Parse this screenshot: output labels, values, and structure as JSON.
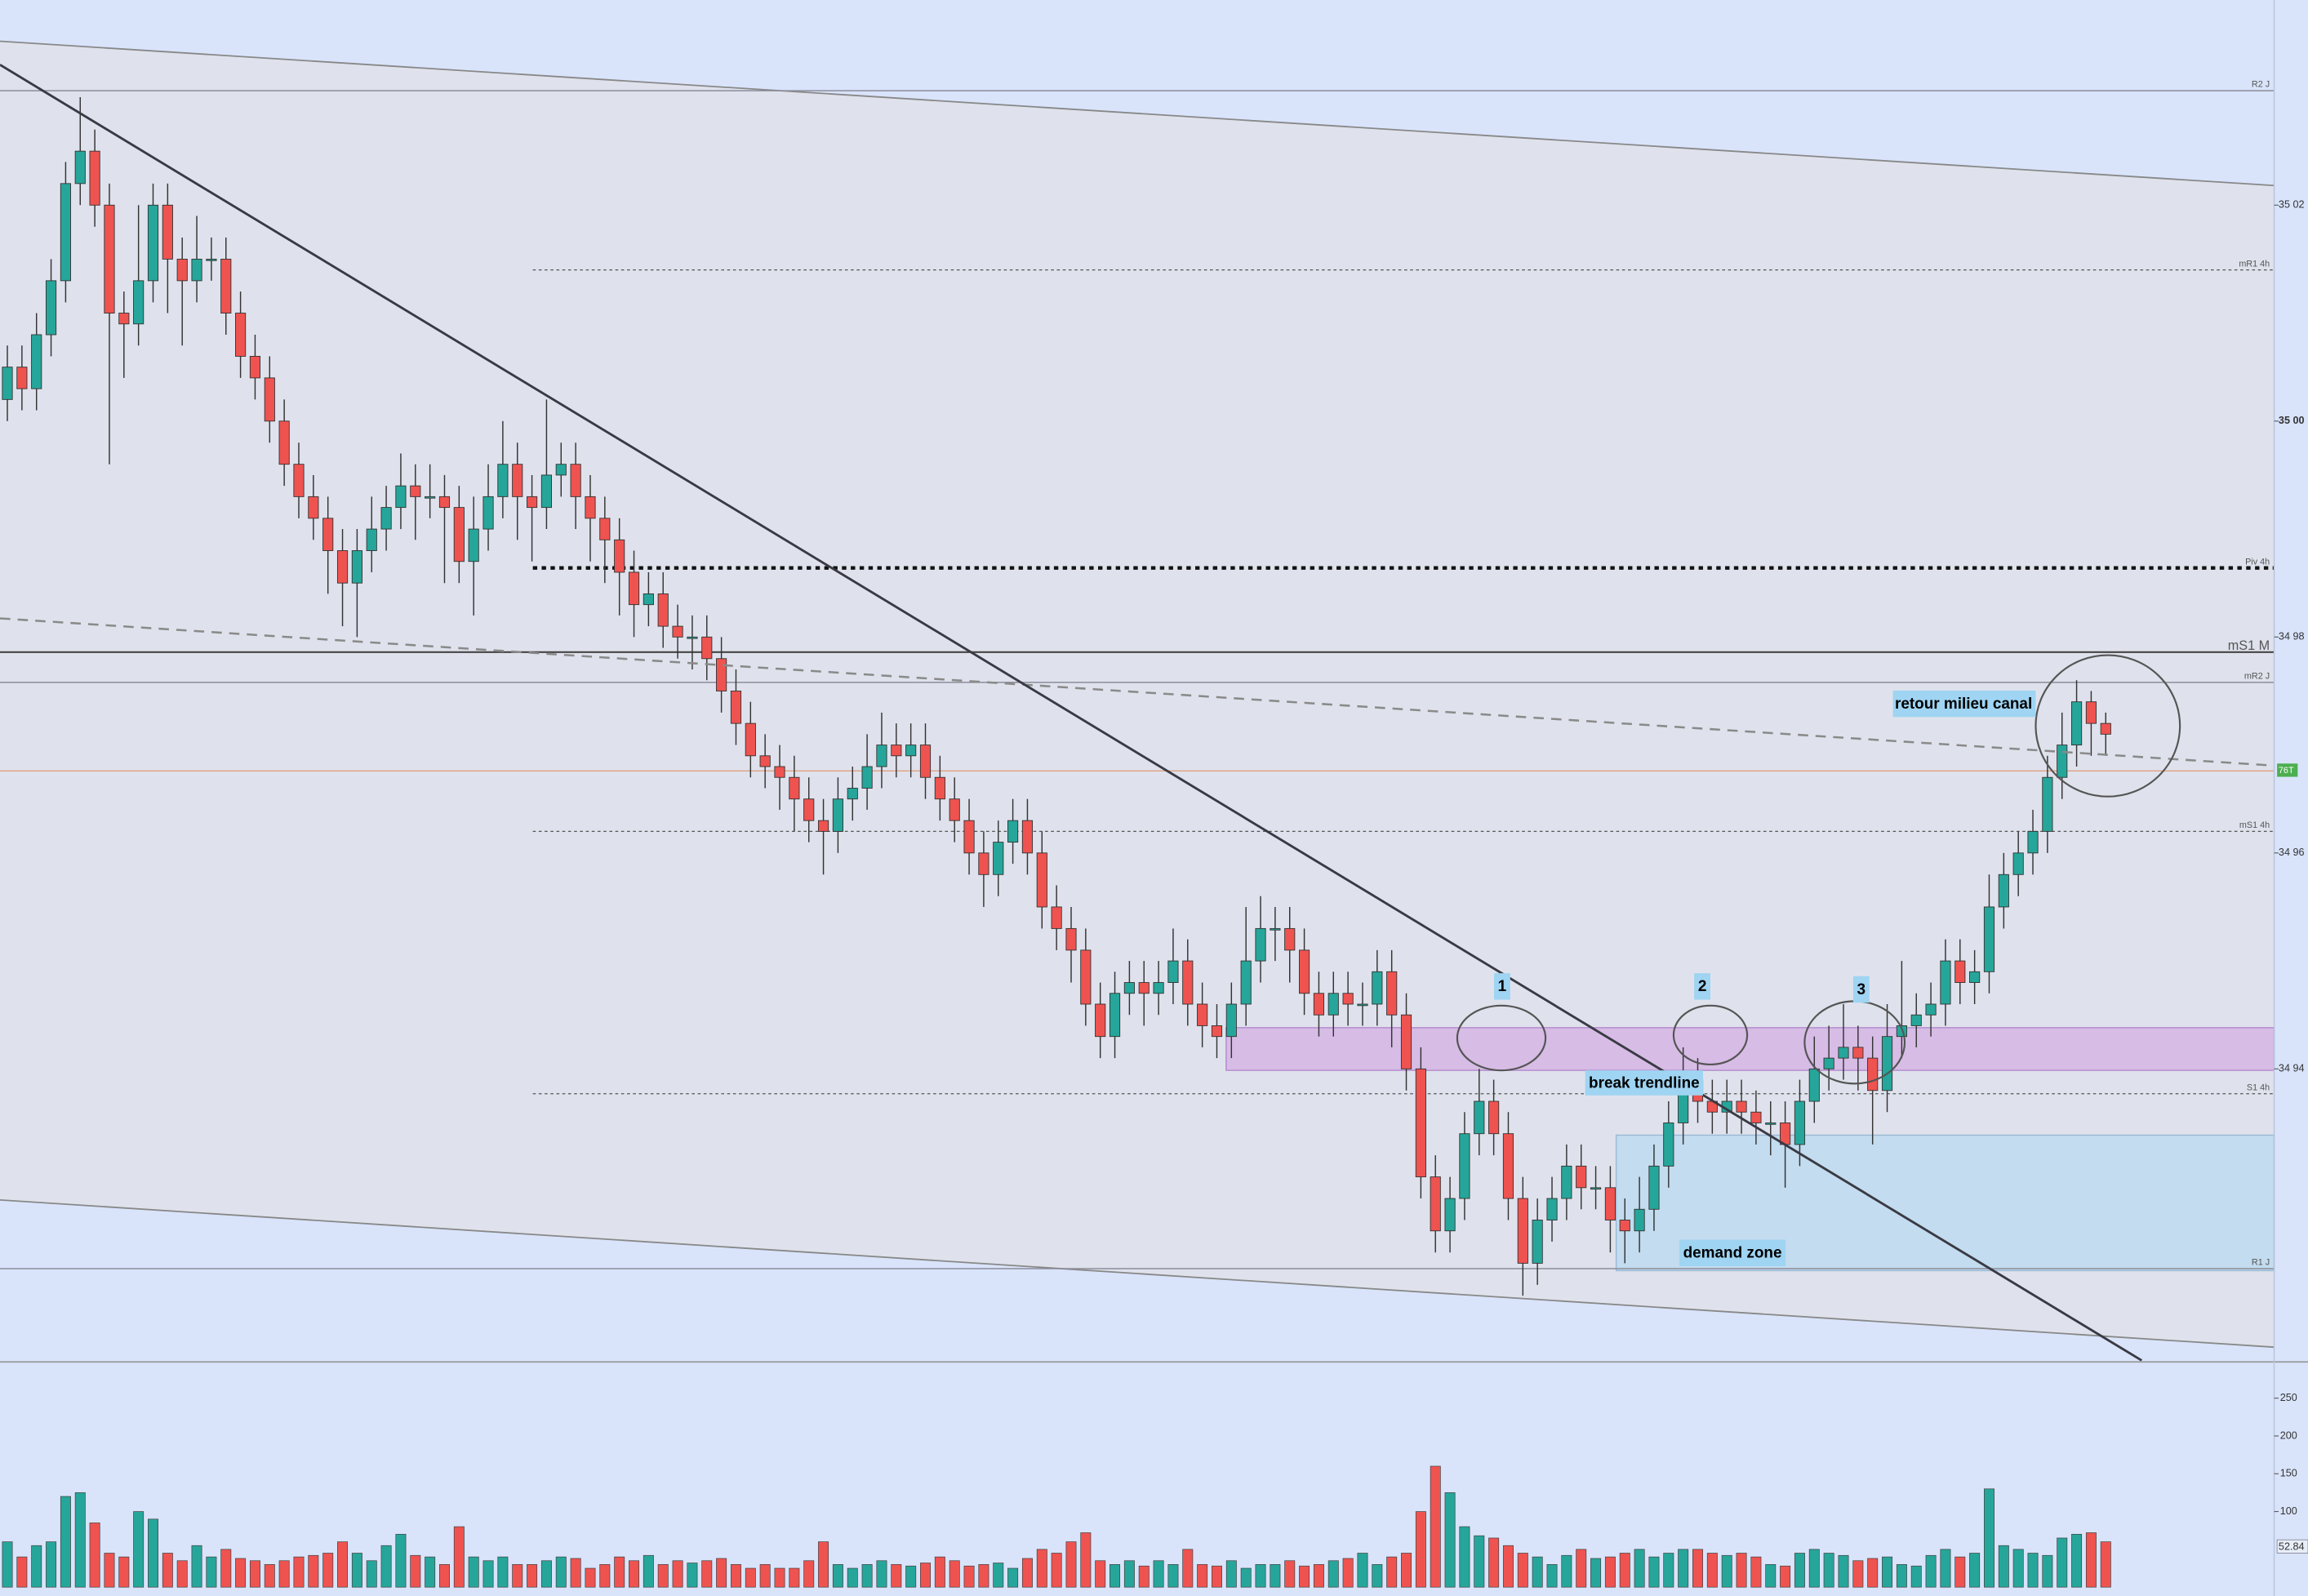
{
  "chart_data": {
    "type": "candlestick",
    "ylim": [
      34913,
      35039
    ],
    "yticks": [
      {
        "value": 35020,
        "label": "35 02"
      },
      {
        "value": 35000,
        "label": "35 00"
      },
      {
        "value": 34980,
        "label": "34 98"
      },
      {
        "value": 34960,
        "label": "34 96"
      },
      {
        "value": 34940,
        "label": "34 94"
      }
    ],
    "up_color": "#26a69a",
    "down_color": "#ef5350",
    "open": [
      35002,
      35005,
      35003,
      35008,
      35013,
      35022,
      35025,
      35020,
      35010,
      35009,
      35013,
      35020,
      35015,
      35013,
      35015,
      35015,
      35010,
      35006,
      35004,
      35000,
      34996,
      34993,
      34991,
      34988,
      34985,
      34988,
      34990,
      34992,
      34994,
      34993,
      34993,
      34992,
      34987,
      34990,
      34993,
      34996,
      34993,
      34992,
      34995,
      34996,
      34993,
      34991,
      34989,
      34986,
      34983,
      34984,
      34981,
      34980,
      34980,
      34978,
      34975,
      34972,
      34969,
      34968,
      34967,
      34965,
      34963,
      34962,
      34965,
      34966,
      34968,
      34970,
      34969,
      34970,
      34967,
      34965,
      34963,
      34960,
      34958,
      34961,
      34963,
      34960,
      34955,
      34953,
      34951,
      34946,
      34943,
      34947,
      34948,
      34947,
      34948,
      34950,
      34946,
      34944,
      34943,
      34946,
      34950,
      34953,
      34953,
      34951,
      34947,
      34945,
      34947,
      34946,
      34946,
      34949,
      34945,
      34940,
      34930,
      34925,
      34928,
      34934,
      34937,
      34934,
      34928,
      34922,
      34926,
      34928,
      34931,
      34929,
      34929,
      34926,
      34925,
      34927,
      34931,
      34935,
      34939,
      34937,
      34936,
      34937,
      34936,
      34935,
      34935,
      34933,
      34937,
      34940,
      34941,
      34942,
      34941,
      34938,
      34943,
      34944,
      34945,
      34946,
      34950,
      34948,
      34949,
      34955,
      34958,
      34960,
      34962,
      34967,
      34970,
      34974,
      34972
    ],
    "high": [
      35007,
      35007,
      35010,
      35015,
      35024,
      35030,
      35027,
      35022,
      35012,
      35020,
      35022,
      35022,
      35017,
      35019,
      35017,
      35017,
      35012,
      35008,
      35006,
      35002,
      34998,
      34995,
      34993,
      34990,
      34990,
      34993,
      34994,
      34997,
      34996,
      34996,
      34995,
      34994,
      34993,
      34996,
      35000,
      34998,
      34995,
      35002,
      34998,
      34998,
      34995,
      34993,
      34991,
      34988,
      34986,
      34986,
      34983,
      34982,
      34982,
      34980,
      34977,
      34974,
      34971,
      34970,
      34969,
      34967,
      34965,
      34967,
      34968,
      34971,
      34973,
      34972,
      34972,
      34972,
      34969,
      34967,
      34965,
      34962,
      34963,
      34965,
      34965,
      34962,
      34957,
      34955,
      34953,
      34948,
      34949,
      34950,
      34950,
      34950,
      34953,
      34952,
      34948,
      34946,
      34948,
      34955,
      34956,
      34955,
      34955,
      34953,
      34949,
      34949,
      34949,
      34948,
      34951,
      34951,
      34947,
      34942,
      34932,
      34930,
      34936,
      34940,
      34939,
      34936,
      34930,
      34928,
      34930,
      34933,
      34933,
      34931,
      34931,
      34928,
      34930,
      34933,
      34937,
      34942,
      34941,
      34939,
      34939,
      34939,
      34938,
      34937,
      34937,
      34939,
      34943,
      34944,
      34946,
      34944,
      34943,
      34946,
      34950,
      34947,
      34948,
      34952,
      34952,
      34951,
      34958,
      34960,
      34962,
      34964,
      34969,
      34973,
      34976,
      34975,
      34973
    ],
    "low": [
      35000,
      35001,
      35001,
      35006,
      35011,
      35020,
      35018,
      34996,
      35004,
      35007,
      35011,
      35010,
      35007,
      35011,
      35013,
      35008,
      35004,
      35002,
      34998,
      34994,
      34991,
      34989,
      34984,
      34981,
      34980,
      34986,
      34988,
      34990,
      34989,
      34991,
      34985,
      34985,
      34982,
      34988,
      34991,
      34989,
      34987,
      34990,
      34993,
      34990,
      34987,
      34985,
      34982,
      34980,
      34981,
      34979,
      34978,
      34977,
      34976,
      34973,
      34970,
      34967,
      34966,
      34964,
      34962,
      34961,
      34958,
      34960,
      34963,
      34964,
      34966,
      34967,
      34967,
      34965,
      34963,
      34961,
      34958,
      34955,
      34956,
      34959,
      34958,
      34953,
      34951,
      34948,
      34944,
      34941,
      34941,
      34945,
      34944,
      34945,
      34946,
      34944,
      34942,
      34941,
      34941,
      34944,
      34948,
      34950,
      34948,
      34945,
      34943,
      34943,
      34944,
      34944,
      34944,
      34942,
      34938,
      34928,
      34923,
      34923,
      34926,
      34932,
      34932,
      34926,
      34919,
      34920,
      34924,
      34926,
      34927,
      34927,
      34923,
      34922,
      34923,
      34925,
      34929,
      34933,
      34935,
      34934,
      34934,
      34934,
      34933,
      34932,
      34929,
      34931,
      34935,
      34938,
      34939,
      34938,
      34933,
      34936,
      34941,
      34942,
      34943,
      34944,
      34946,
      34946,
      34947,
      34953,
      34956,
      34958,
      34960,
      34965,
      34968,
      34969,
      34969
    ],
    "close": [
      35005,
      35003,
      35008,
      35013,
      35022,
      35025,
      35020,
      35010,
      35009,
      35013,
      35020,
      35015,
      35013,
      35015,
      35015,
      35010,
      35006,
      35004,
      35000,
      34996,
      34993,
      34991,
      34988,
      34985,
      34988,
      34990,
      34992,
      34994,
      34993,
      34993,
      34992,
      34987,
      34990,
      34993,
      34996,
      34993,
      34992,
      34995,
      34996,
      34993,
      34991,
      34989,
      34986,
      34983,
      34984,
      34981,
      34980,
      34980,
      34978,
      34975,
      34972,
      34969,
      34968,
      34967,
      34965,
      34963,
      34962,
      34965,
      34966,
      34968,
      34970,
      34969,
      34970,
      34967,
      34965,
      34963,
      34960,
      34958,
      34961,
      34963,
      34960,
      34955,
      34953,
      34951,
      34946,
      34943,
      34947,
      34948,
      34947,
      34948,
      34950,
      34946,
      34944,
      34943,
      34946,
      34950,
      34953,
      34953,
      34951,
      34947,
      34945,
      34947,
      34946,
      34946,
      34949,
      34945,
      34940,
      34930,
      34925,
      34928,
      34934,
      34937,
      34934,
      34928,
      34922,
      34926,
      34928,
      34931,
      34929,
      34929,
      34926,
      34925,
      34927,
      34931,
      34935,
      34939,
      34937,
      34936,
      34937,
      34936,
      34935,
      34935,
      34933,
      34937,
      34940,
      34941,
      34942,
      34941,
      34938,
      34943,
      34944,
      34945,
      34946,
      34950,
      34948,
      34949,
      34955,
      34958,
      34960,
      34962,
      34967,
      34970,
      34974,
      34972,
      34971
    ],
    "volume": [
      60,
      40,
      55,
      60,
      120,
      125,
      85,
      45,
      40,
      100,
      90,
      45,
      35,
      55,
      40,
      50,
      38,
      35,
      30,
      35,
      40,
      42,
      45,
      60,
      45,
      35,
      55,
      70,
      42,
      40,
      30,
      80,
      40,
      35,
      40,
      30,
      30,
      35,
      40,
      38,
      25,
      30,
      40,
      35,
      42,
      30,
      35,
      32,
      35,
      38,
      30,
      25,
      30,
      25,
      25,
      35,
      60,
      30,
      25,
      30,
      35,
      30,
      28,
      32,
      40,
      35,
      28,
      30,
      32,
      25,
      38,
      50,
      45,
      60,
      72,
      35,
      30,
      35,
      28,
      35,
      30,
      50,
      30,
      28,
      35,
      25,
      30,
      30,
      35,
      28,
      30,
      35,
      38,
      45,
      30,
      40,
      45,
      100,
      160,
      125,
      80,
      68,
      65,
      55,
      45,
      40,
      30,
      42,
      50,
      38,
      40,
      45,
      50,
      40,
      45,
      50,
      50,
      45,
      42,
      45,
      40,
      30,
      28,
      45,
      50,
      45,
      42,
      35,
      38,
      40,
      30,
      28,
      42,
      50,
      40,
      45,
      130,
      55,
      50,
      45,
      42,
      65,
      70,
      72,
      60
    ],
    "volume_ylim": [
      0,
      296
    ],
    "volume_yticks": [
      100,
      150,
      200,
      250
    ],
    "volume_marker": 52.84,
    "levels": [
      {
        "label": "R2 J",
        "value": 35030.6,
        "style": "solid"
      },
      {
        "label": "mR1 4h",
        "value": 35014,
        "style": "dotted"
      },
      {
        "label": "Piv 4h",
        "value": 34986.4,
        "style": "thick-dotted"
      },
      {
        "label": "mS1 M",
        "value": 34978.6,
        "style": "dark"
      },
      {
        "label": "mR2 J",
        "value": 34975.8,
        "style": "solid"
      },
      {
        "label": "mS1 4h",
        "value": 34962,
        "style": "dotted"
      },
      {
        "label": "S1 4h",
        "value": 34937.7,
        "style": "dotted"
      },
      {
        "label": "R1 J",
        "value": 34921.5,
        "style": "solid"
      }
    ],
    "last_price": 34967.6,
    "last_price_tag": "76T",
    "annotations": [
      "retour milieu canal",
      "1",
      "2",
      "3",
      "break trendline",
      "demand zone"
    ]
  }
}
